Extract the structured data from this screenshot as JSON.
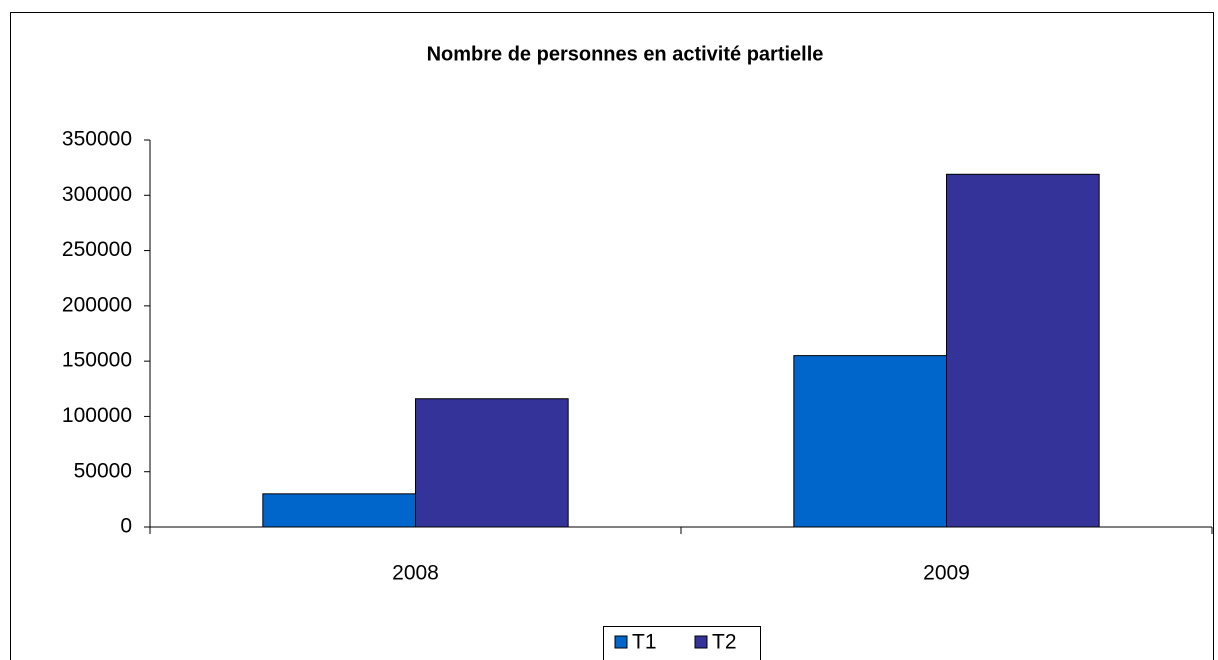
{
  "chart_data": {
    "type": "bar",
    "title": "Nombre de personnes en activité partielle",
    "categories": [
      "2008",
      "2009"
    ],
    "series": [
      {
        "name": "T1",
        "color": "#0066cc",
        "values": [
          30000,
          155000
        ]
      },
      {
        "name": "T2",
        "color": "#333399",
        "values": [
          116000,
          319000
        ]
      }
    ],
    "ylim": [
      0,
      350000
    ],
    "yticks": [
      0,
      50000,
      100000,
      150000,
      200000,
      250000,
      300000,
      350000
    ],
    "grid": false,
    "legend": "bottom"
  }
}
